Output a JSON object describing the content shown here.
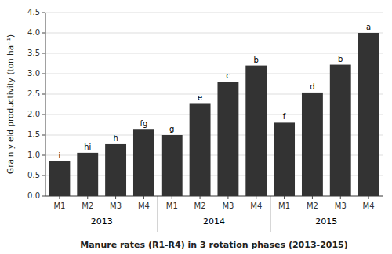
{
  "chart_data": {
    "type": "bar",
    "categories": [
      "M1",
      "M2",
      "M3",
      "M4",
      "M1",
      "M2",
      "M3",
      "M4",
      "M1",
      "M2",
      "M3",
      "M4"
    ],
    "values": [
      0.85,
      1.06,
      1.27,
      1.63,
      1.5,
      2.26,
      2.8,
      3.2,
      1.8,
      2.54,
      3.22,
      4.0
    ],
    "annotations": [
      "i",
      "hi",
      "h",
      "fg",
      "g",
      "e",
      "c",
      "b",
      "f",
      "d",
      "b",
      "a"
    ],
    "group_labels": [
      "2013",
      "2014",
      "2015"
    ],
    "color": "#333333",
    "ylabel": "Grain yield productivity (ton ha⁻¹)",
    "xlabel": "Manure rates (R1-R4) in 3 rotation phases (2013-2015)",
    "ylim": [
      0,
      4.5
    ],
    "yticks": [
      {
        "value": 0.0,
        "label": "0.0"
      },
      0.5,
      {
        "value": 1.0,
        "label": "1.0"
      },
      1.5,
      {
        "value": 2.0,
        "label": "2.0"
      },
      2.5,
      {
        "value": 3.0,
        "label": "3.0"
      },
      3.5,
      {
        "value": 4.0,
        "label": "4.0"
      },
      4.5
    ],
    "grid": true
  }
}
